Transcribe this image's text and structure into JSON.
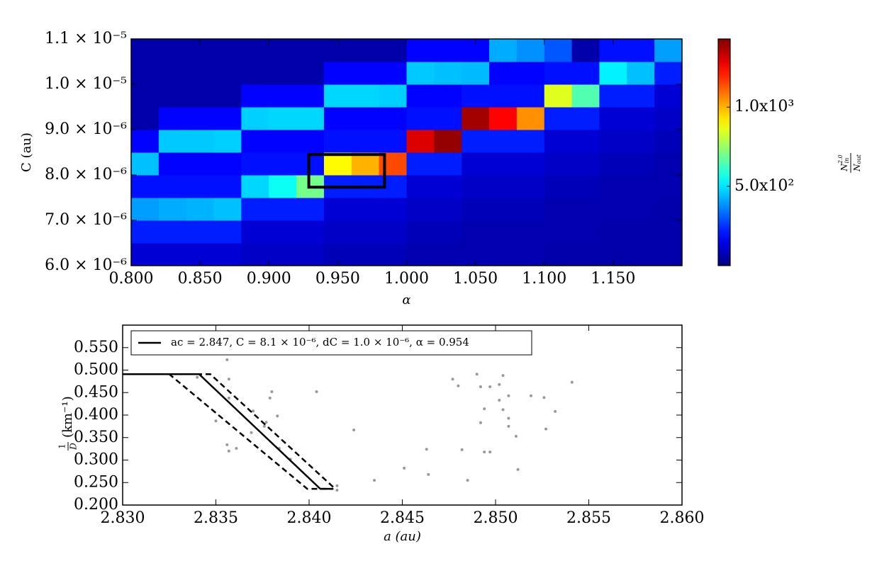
{
  "chart_data": [
    {
      "type": "heatmap",
      "xlabel": "α",
      "ylabel": "C (au)",
      "colormap": "jet",
      "xlim": [
        0.8,
        1.2
      ],
      "ylim": [
        6e-06,
        1.1e-05
      ],
      "clim": [
        0,
        1430
      ],
      "xticks": [
        {
          "value": 0.8,
          "label": "0.800"
        },
        {
          "value": 0.85,
          "label": "0.850"
        },
        {
          "value": 0.9,
          "label": "0.900"
        },
        {
          "value": 0.95,
          "label": "0.950"
        },
        {
          "value": 1.0,
          "label": "1.000"
        },
        {
          "value": 1.05,
          "label": "1.050"
        },
        {
          "value": 1.1,
          "label": "1.100"
        },
        {
          "value": 1.15,
          "label": "1.150"
        }
      ],
      "yticks": [
        {
          "value": 6e-06,
          "label": "6.0 × 10⁻⁶"
        },
        {
          "value": 7e-06,
          "label": "7.0 × 10⁻⁶"
        },
        {
          "value": 8e-06,
          "label": "8.0 × 10⁻⁶"
        },
        {
          "value": 9e-06,
          "label": "9.0 × 10⁻⁶"
        },
        {
          "value": 1e-05,
          "label": "1.0 × 10⁻⁵"
        },
        {
          "value": 1.1e-05,
          "label": "1.1 × 10⁻⁵"
        }
      ],
      "colorbar_ticks": [
        {
          "value": 500,
          "label": "5.0x10²"
        },
        {
          "value": 1000,
          "label": "1.0x10³"
        }
      ],
      "colorbar_label": {
        "numerator": "N",
        "numerator_sub": "in",
        "numerator_sup": "2.0",
        "denominator": "N",
        "denominator_sub": "out"
      },
      "xbins": [
        0.8,
        0.82,
        0.84,
        0.86,
        0.88,
        0.9,
        0.92,
        0.94,
        0.96,
        0.98,
        1.0,
        1.02,
        1.04,
        1.06,
        1.08,
        1.1,
        1.12,
        1.14,
        1.16,
        1.18,
        1.2
      ],
      "ybins": [
        6e-06,
        6.5e-06,
        7e-06,
        7.5e-06,
        8e-06,
        8.5e-06,
        9e-06,
        9.5e-06,
        1e-05,
        1.05e-05,
        1.1e-05
      ],
      "z": [
        [
          120,
          220,
          400,
          200,
          450,
          180,
          60,
          60,
          60,
          60
        ],
        [
          120,
          220,
          420,
          200,
          180,
          460,
          180,
          60,
          60,
          60
        ],
        [
          120,
          220,
          430,
          200,
          180,
          460,
          180,
          60,
          60,
          60
        ],
        [
          120,
          220,
          450,
          200,
          180,
          470,
          180,
          60,
          60,
          60
        ],
        [
          100,
          120,
          220,
          480,
          200,
          180,
          470,
          180,
          60,
          60
        ],
        [
          100,
          120,
          220,
          550,
          200,
          180,
          480,
          180,
          60,
          60
        ],
        [
          100,
          120,
          220,
          700,
          200,
          180,
          480,
          180,
          60,
          60
        ],
        [
          80,
          100,
          120,
          220,
          900,
          200,
          180,
          480,
          180,
          60
        ],
        [
          80,
          100,
          120,
          220,
          1000,
          200,
          180,
          480,
          180,
          60
        ],
        [
          80,
          100,
          120,
          220,
          1150,
          200,
          180,
          470,
          180,
          60
        ],
        [
          70,
          80,
          100,
          120,
          220,
          1300,
          200,
          180,
          460,
          180
        ],
        [
          70,
          80,
          100,
          120,
          220,
          1400,
          200,
          180,
          450,
          180
        ],
        [
          70,
          70,
          80,
          100,
          120,
          220,
          1380,
          200,
          440,
          180
        ],
        [
          70,
          70,
          80,
          100,
          120,
          220,
          1250,
          200,
          180,
          420
        ],
        [
          70,
          70,
          80,
          100,
          120,
          220,
          1050,
          200,
          180,
          380
        ],
        [
          60,
          70,
          70,
          80,
          100,
          120,
          220,
          850,
          200,
          300
        ],
        [
          60,
          70,
          70,
          80,
          100,
          120,
          220,
          650,
          200,
          60
        ],
        [
          60,
          60,
          70,
          70,
          80,
          100,
          120,
          220,
          520,
          200
        ],
        [
          60,
          60,
          70,
          70,
          80,
          100,
          120,
          220,
          450,
          200
        ],
        [
          60,
          60,
          60,
          70,
          70,
          80,
          100,
          120,
          220,
          400
        ]
      ],
      "box": {
        "x": [
          0.929,
          0.984
        ],
        "y": [
          7.73e-06,
          8.45e-06
        ],
        "color": "#000000"
      }
    },
    {
      "type": "line",
      "xlabel": "a (au)",
      "ylabel": {
        "numerator": "1",
        "denominator": "D",
        "unit": "(km⁻¹)"
      },
      "xlim": [
        2.83,
        2.86
      ],
      "ylim": [
        0.2,
        0.6
      ],
      "legend": "upper left",
      "xticks": [
        {
          "value": 2.83,
          "label": "2.830"
        },
        {
          "value": 2.835,
          "label": "2.835"
        },
        {
          "value": 2.84,
          "label": "2.840"
        },
        {
          "value": 2.845,
          "label": "2.845"
        },
        {
          "value": 2.85,
          "label": "2.850"
        },
        {
          "value": 2.855,
          "label": "2.855"
        },
        {
          "value": 2.86,
          "label": "2.860"
        }
      ],
      "yticks": [
        {
          "value": 0.2,
          "label": "0.200"
        },
        {
          "value": 0.25,
          "label": "0.250"
        },
        {
          "value": 0.3,
          "label": "0.300"
        },
        {
          "value": 0.35,
          "label": "0.350"
        },
        {
          "value": 0.4,
          "label": "0.400"
        },
        {
          "value": 0.45,
          "label": "0.450"
        },
        {
          "value": 0.5,
          "label": "0.500"
        },
        {
          "value": 0.55,
          "label": "0.550"
        }
      ],
      "series": [
        {
          "name": "ac = 2.847, C = 8.1 × 10⁻⁶, dC = 1.0 × 10⁻⁶, α = 0.954",
          "color": "#000000",
          "dash": "solid",
          "x": [
            2.83,
            2.8341,
            2.8406,
            2.8413
          ],
          "values": [
            0.491,
            0.491,
            0.236,
            0.236
          ]
        },
        {
          "color": "#000000",
          "dash": "dashed",
          "x": [
            2.83,
            2.8347,
            2.8414
          ],
          "values": [
            0.491,
            0.491,
            0.236
          ]
        },
        {
          "color": "#000000",
          "dash": "dashed",
          "x": [
            2.83,
            2.8325,
            2.8399,
            2.8413
          ],
          "values": [
            0.491,
            0.491,
            0.236,
            0.236
          ]
        }
      ],
      "scatter": {
        "color": "#999999",
        "x": [
          2.834,
          2.8356,
          2.8357,
          2.838,
          2.8404,
          2.8383,
          2.8357,
          2.8379,
          2.835,
          2.8377,
          2.8376,
          2.837,
          2.8369,
          2.8356,
          2.8357,
          2.8361,
          2.8384,
          2.839,
          2.8415,
          2.8415,
          2.8424,
          2.8435,
          2.8451,
          2.8463,
          2.8464,
          2.8477,
          2.848,
          2.8482,
          2.8485,
          2.849,
          2.8492,
          2.8492,
          2.8494,
          2.8494,
          2.8497,
          2.8497,
          2.8502,
          2.8502,
          2.8504,
          2.8504,
          2.8507,
          2.8507,
          2.8507,
          2.8511,
          2.8512,
          2.8519,
          2.8526,
          2.8527,
          2.8532,
          2.8541
        ],
        "values": [
          0.484,
          0.523,
          0.48,
          0.452,
          0.452,
          0.398,
          0.438,
          0.438,
          0.387,
          0.384,
          0.375,
          0.409,
          0.361,
          0.334,
          0.32,
          0.326,
          0.326,
          0.302,
          0.243,
          0.233,
          0.367,
          0.255,
          0.282,
          0.324,
          0.268,
          0.48,
          0.465,
          0.323,
          0.255,
          0.491,
          0.463,
          0.383,
          0.414,
          0.318,
          0.318,
          0.463,
          0.468,
          0.433,
          0.488,
          0.412,
          0.443,
          0.393,
          0.375,
          0.353,
          0.279,
          0.443,
          0.439,
          0.369,
          0.408,
          0.473
        ]
      }
    }
  ]
}
